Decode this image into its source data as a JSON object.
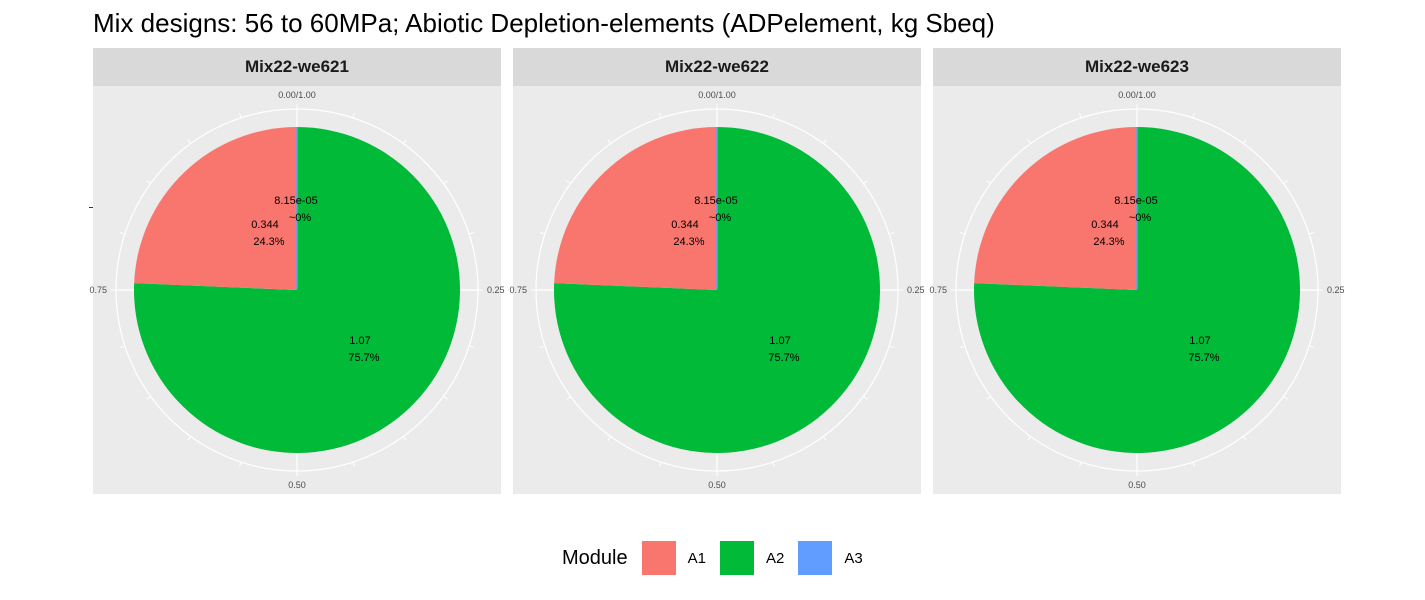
{
  "title": "Mix designs: 56 to 60MPa; Abiotic Depletion-elements (ADPelement, kg Sbeq)",
  "legend": {
    "title": "Module"
  },
  "chart_data": {
    "type": "pie",
    "title": "Mix designs: 56 to 60MPa; Abiotic Depletion-elements (ADPelement, kg Sbeq)",
    "legend": {
      "title": "Module",
      "position": "bottom",
      "entries": [
        "A1",
        "A2",
        "A3"
      ]
    },
    "colors": {
      "A1": "#f8766d",
      "A2": "#00ba38",
      "A3": "#619cff"
    },
    "angular_ticks": [
      "0.00/1.00",
      "0.25",
      "0.50",
      "0.75"
    ],
    "grid": true,
    "panels": [
      {
        "facet": "Mix22-we621",
        "slices": [
          {
            "module": "A1",
            "value": 0.344,
            "value_label": "0.344",
            "percent_label": "24.3%"
          },
          {
            "module": "A2",
            "value": 1.07,
            "value_label": "1.07",
            "percent_label": "75.7%"
          },
          {
            "module": "A3",
            "value": 8.15e-05,
            "value_label": "8.15e-05",
            "percent_label": "~0%"
          }
        ]
      },
      {
        "facet": "Mix22-we622",
        "slices": [
          {
            "module": "A1",
            "value": 0.344,
            "value_label": "0.344",
            "percent_label": "24.3%"
          },
          {
            "module": "A2",
            "value": 1.07,
            "value_label": "1.07",
            "percent_label": "75.7%"
          },
          {
            "module": "A3",
            "value": 8.15e-05,
            "value_label": "8.15e-05",
            "percent_label": "~0%"
          }
        ]
      },
      {
        "facet": "Mix22-we623",
        "slices": [
          {
            "module": "A1",
            "value": 0.344,
            "value_label": "0.344",
            "percent_label": "24.3%"
          },
          {
            "module": "A2",
            "value": 1.07,
            "value_label": "1.07",
            "percent_label": "75.7%"
          },
          {
            "module": "A3",
            "value": 8.15e-05,
            "value_label": "8.15e-05",
            "percent_label": "~0%"
          }
        ]
      }
    ]
  }
}
